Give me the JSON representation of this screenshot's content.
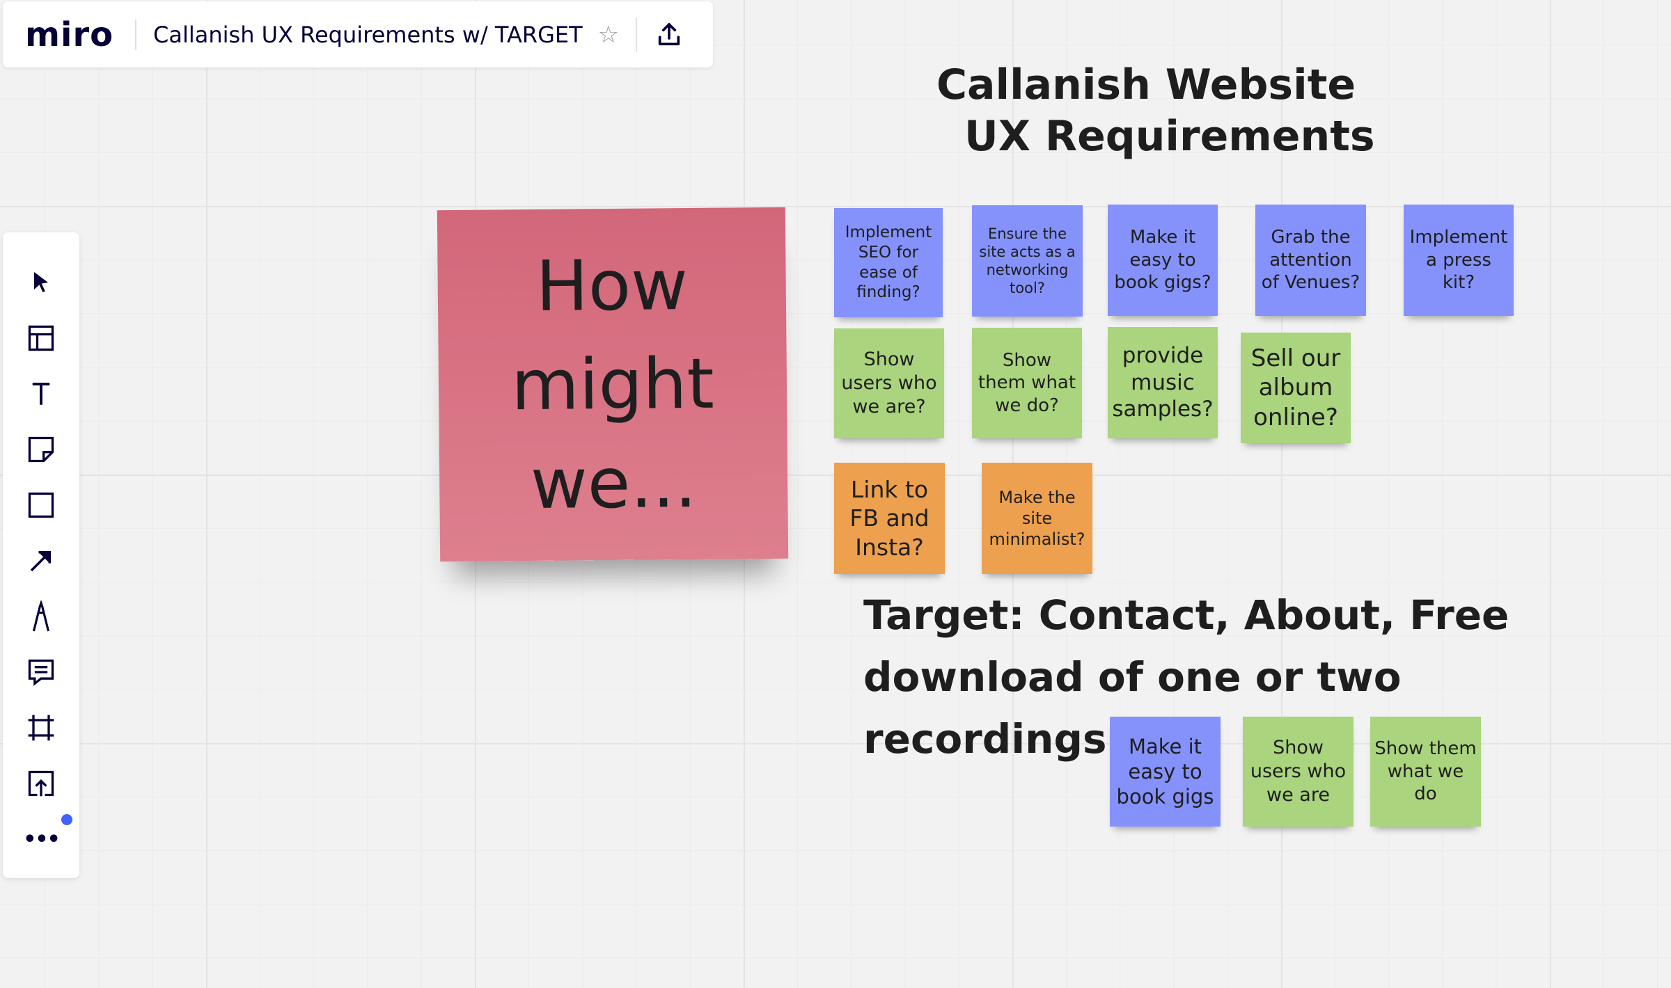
{
  "app": {
    "logo": "miro",
    "board_title": "Callanish UX Requirements w/ TARGET"
  },
  "toolbar": {
    "tools": [
      "select-icon",
      "templates-icon",
      "text-icon",
      "sticky-note-icon",
      "shape-icon",
      "arrow-icon",
      "pen-icon",
      "comment-icon",
      "frame-icon",
      "upload-icon",
      "more-icon"
    ],
    "more_label": "•••"
  },
  "board": {
    "heading_line1": "Callanish Website",
    "heading_line2": "UX Requirements",
    "big_note": {
      "line1": "How",
      "line2": "might",
      "line3": "we..."
    },
    "notes_row1": [
      "Implement SEO for ease of finding?",
      "Ensure the site acts as a networking tool?",
      "Make it easy to book gigs?",
      "Grab the attention of Venues?",
      "Implement a press kit?"
    ],
    "notes_row2": [
      "Show users who we are?",
      "Show them what we do?",
      "provide music samples?",
      "Sell our album online?"
    ],
    "notes_row3": [
      "Link to FB and Insta?",
      "Make the site minimalist?"
    ],
    "target_text": "Target: Contact, About, Free download of one or two recordings",
    "target_notes": [
      "Make it easy to book gigs",
      "Show users who we are",
      "Show them what we do"
    ],
    "colors": {
      "blue": "#8592fb",
      "green": "#aad47d",
      "orange": "#eda04e",
      "pink": "#d8707f"
    }
  }
}
